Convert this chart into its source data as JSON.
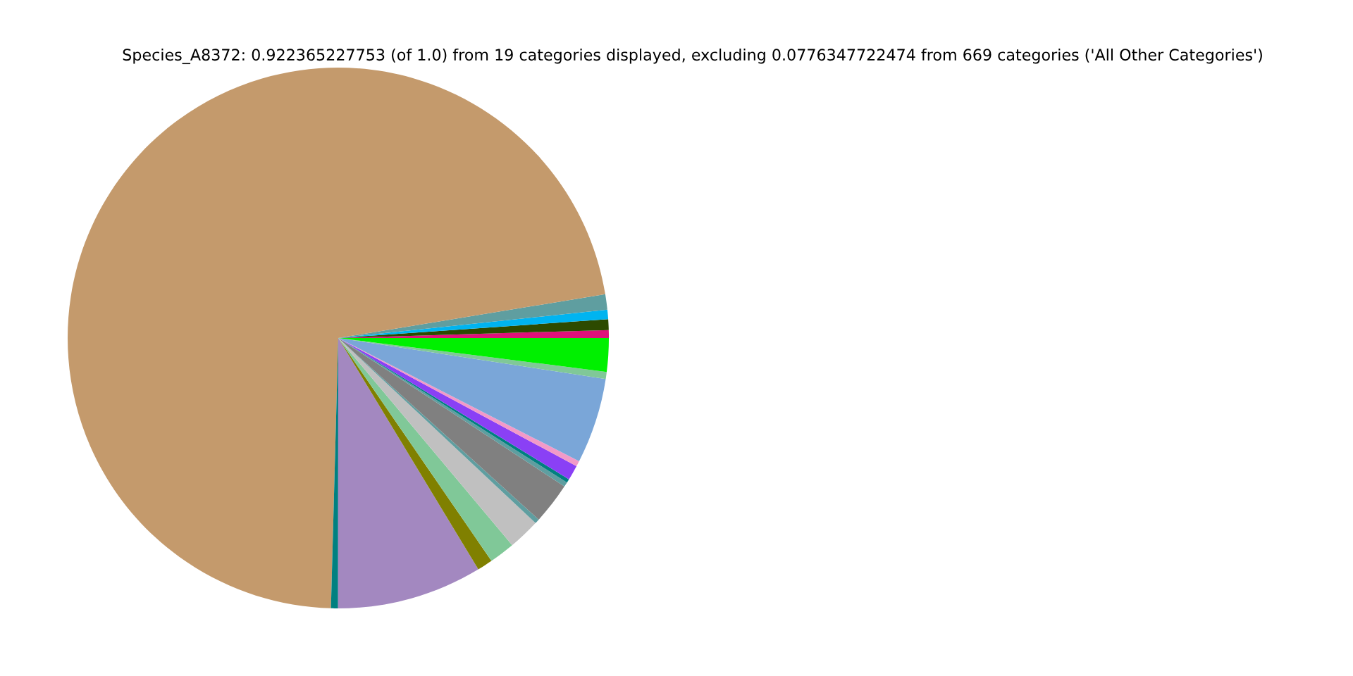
{
  "chart_data": {
    "type": "pie",
    "title": "Species_A8372: 0.922365227753 (of 1.0) from 19 categories displayed, excluding 0.0776347722474 from 669 categories ('All Other Categories')",
    "categories": [
      null,
      null,
      null,
      null,
      null,
      null,
      null,
      null,
      null,
      null,
      null,
      null,
      null,
      null,
      null,
      null,
      null,
      null,
      null
    ],
    "values": [
      0.47,
      0.64,
      0.56,
      0.92,
      71.98,
      0.42,
      8.67,
      0.92,
      1.53,
      1.89,
      0.28,
      2.47,
      0.28,
      0.22,
      0.89,
      0.33,
      5.11,
      0.42,
      2.0
    ],
    "colors": [
      "#e0107a",
      "#2d4a00",
      "#00b4f0",
      "#5f9ea0",
      "#c49a6c",
      "#008080",
      "#a388c0",
      "#808000",
      "#80c898",
      "#c0c0c0",
      "#5f9ea0",
      "#808080",
      "#5f9ea0",
      "#008080",
      "#8a40f5",
      "#f29ac8",
      "#7aa6d8",
      "#80c898",
      "#00f000"
    ]
  }
}
